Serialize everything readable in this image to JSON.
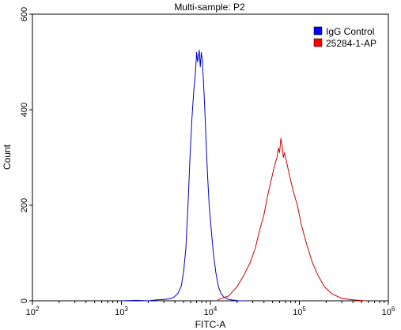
{
  "chart_data": {
    "type": "line",
    "title": "Multi-sample: P2",
    "xlabel": "FITC-A",
    "ylabel": "Count",
    "x_scale": "log",
    "xlim": [
      100,
      1000000
    ],
    "ylim": [
      0,
      600
    ],
    "grid": false,
    "legend_position": "top-right",
    "x_ticks": [
      {
        "value": 100,
        "base": "10",
        "exp": "2"
      },
      {
        "value": 1000,
        "base": "10",
        "exp": "3"
      },
      {
        "value": 10000,
        "base": "10",
        "exp": "4"
      },
      {
        "value": 100000,
        "base": "10",
        "exp": "5"
      },
      {
        "value": 1000000,
        "base": "10",
        "exp": "6"
      }
    ],
    "y_ticks": [
      {
        "value": 0,
        "label": "0"
      },
      {
        "value": 200,
        "label": "200"
      },
      {
        "value": 400,
        "label": "400"
      },
      {
        "value": 600,
        "label": "600"
      }
    ],
    "series": [
      {
        "name": "IgG Control",
        "color": "#0000cc",
        "legend_color": "#0000ff",
        "x": [
          1000,
          1500,
          2000,
          2500,
          3000,
          3500,
          3900,
          4300,
          4700,
          5000,
          5300,
          5600,
          5900,
          6200,
          6500,
          6800,
          7000,
          7200,
          7500,
          7700,
          7900,
          8100,
          8300,
          8500,
          8700,
          9000,
          9300,
          9700,
          10200,
          10800,
          11500,
          12300,
          13200,
          14200,
          15500,
          17000,
          19000,
          21000,
          25000
        ],
        "y": [
          0,
          1,
          0,
          2,
          3,
          4,
          8,
          15,
          30,
          60,
          110,
          200,
          300,
          380,
          440,
          480,
          520,
          500,
          525,
          490,
          520,
          505,
          470,
          430,
          390,
          320,
          260,
          200,
          150,
          100,
          60,
          30,
          15,
          8,
          4,
          2,
          1,
          0,
          0
        ]
      },
      {
        "name": "25284-1-AP",
        "color": "#cc0000",
        "legend_color": "#ff0000",
        "x": [
          12000,
          16000,
          20000,
          24000,
          28000,
          32000,
          36000,
          40000,
          44000,
          48000,
          52000,
          56000,
          58000,
          60000,
          62000,
          64000,
          66000,
          68000,
          72000,
          78000,
          85000,
          95000,
          105000,
          120000,
          140000,
          160000,
          190000,
          230000,
          300000,
          400000,
          550000
        ],
        "y": [
          2,
          10,
          30,
          55,
          80,
          110,
          150,
          180,
          220,
          250,
          280,
          300,
          320,
          310,
          340,
          325,
          300,
          310,
          290,
          260,
          230,
          200,
          160,
          120,
          80,
          55,
          30,
          15,
          5,
          2,
          0
        ]
      }
    ]
  }
}
